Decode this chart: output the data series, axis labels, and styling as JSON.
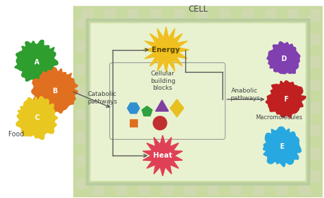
{
  "title": "CELL",
  "title_fontsize": 8.5,
  "cell_fill": "#e8f2d0",
  "cell_outer": "#c8daa0",
  "food_label": "Food",
  "catabolic_label": "Catabolic\npathways",
  "building_label": "Cellular\nbuilding\nblocks",
  "anabolic_label": "Anabolic\npathways",
  "macro_label": "Macromolecules",
  "energy_label": "Energy",
  "heat_label": "Heat",
  "blob_A_color": "#2e9e2e",
  "blob_B_color": "#e07020",
  "blob_C_color": "#e8c820",
  "blob_D_color": "#8040b0",
  "blob_E_color": "#28a8e0",
  "blob_F_color": "#c02020",
  "energy_color": "#f0c020",
  "heat_color": "#e04055",
  "arrow_color": "#555555",
  "box_line_color": "#999999",
  "text_color": "#444444",
  "shape_hex_color": "#3090d0",
  "shape_pent_color": "#30a040",
  "shape_tri_color": "#8040a0",
  "shape_dia_color": "#e8c020",
  "shape_sq_color": "#e07020",
  "shape_circ_color": "#c03030"
}
